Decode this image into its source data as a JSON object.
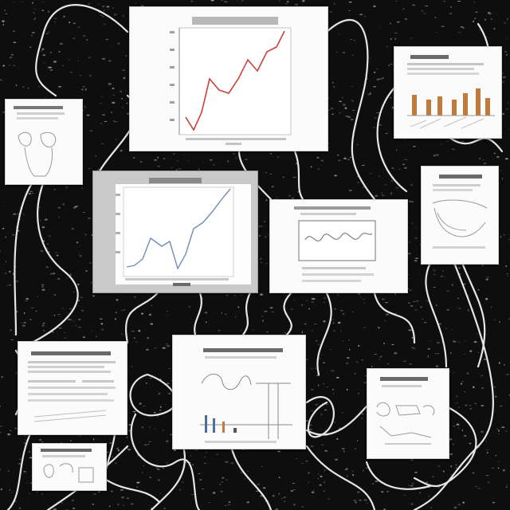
{
  "scene": {
    "background_color": "#0e0e0e",
    "thread_color": "#e6e6e6",
    "paper_color": "#fbfbfb",
    "frame_gray": "#c9c9c9",
    "accent_line_red": "#c8423a",
    "accent_line_blue": "#6f8fb6",
    "accent_bar_orange": "#c27a3b"
  },
  "cards": [
    {
      "id": "card-1",
      "content": "line-chart-red",
      "text_legible": false
    },
    {
      "id": "card-2",
      "content": "line-chart-blue-framed",
      "text_legible": false
    },
    {
      "id": "card-3",
      "content": "bar-chart-orange",
      "text_legible": false
    },
    {
      "id": "card-4",
      "content": "sketch-diagram",
      "text_legible": false
    },
    {
      "id": "card-5",
      "content": "wave-diagram",
      "text_legible": false
    },
    {
      "id": "card-6",
      "content": "curve-diagram",
      "text_legible": false
    },
    {
      "id": "card-7",
      "content": "text-document",
      "text_legible": false
    },
    {
      "id": "card-8",
      "content": "mixed-chart",
      "text_legible": false
    },
    {
      "id": "card-9",
      "content": "sketch-diagram",
      "text_legible": false
    },
    {
      "id": "card-10",
      "content": "sketch-diagram",
      "text_legible": false
    }
  ]
}
